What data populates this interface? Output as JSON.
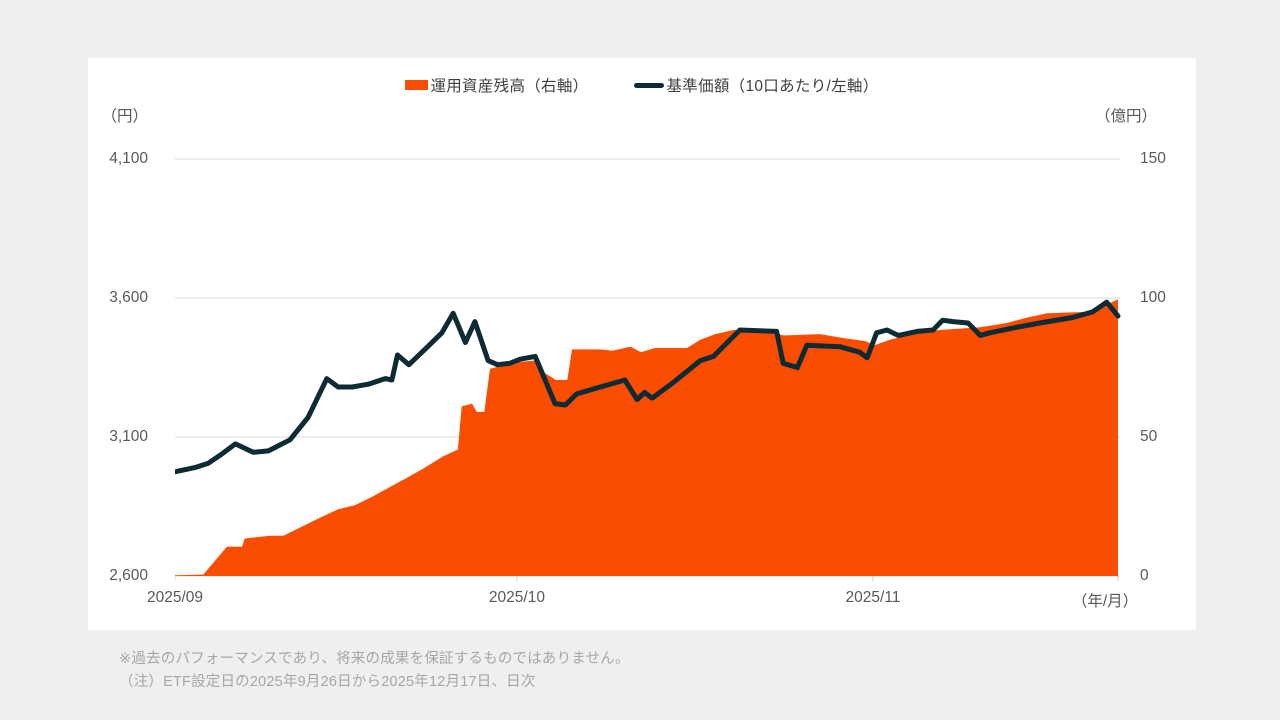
{
  "legend": {
    "items": [
      {
        "label": "運用資産残高（右軸）",
        "swatch": "area",
        "color": "#fa4d00"
      },
      {
        "label": "基準価額（10口あたり/左軸）",
        "swatch": "line",
        "color": "#0d2b35"
      }
    ]
  },
  "axes": {
    "left": {
      "unit": "（円）",
      "ticks": [
        "4,100",
        "3,600",
        "3,100",
        "2,600"
      ]
    },
    "right": {
      "unit": "（億円）",
      "ticks": [
        "150",
        "100",
        "50",
        "0"
      ]
    },
    "x": {
      "unit": "（年/月）"
    }
  },
  "notes": {
    "line1": "※過去のパフォーマンスであり、将来の成果を保証するものではありません。",
    "line2": "（注）ETF設定日の2025年9月26日から2025年12月17日、日次"
  },
  "chart_data": {
    "type": "area+line combo",
    "x_unit": "（年/月）",
    "x_ticks": [
      {
        "label": "2025/09",
        "pos": 0.0
      },
      {
        "label": "2025/10",
        "pos": 0.3626
      },
      {
        "label": "2025/11",
        "pos": 0.7402
      }
    ],
    "left_axis": {
      "label": "基準価額（円）",
      "range": [
        2600,
        4100
      ],
      "ticks": [
        4100,
        3600,
        3100,
        2600
      ]
    },
    "right_axis": {
      "label": "運用資産残高（億円）",
      "range": [
        0,
        150
      ],
      "ticks": [
        150,
        100,
        50,
        0
      ]
    },
    "grid": "horizontal only",
    "legend_position": "top center",
    "series": [
      {
        "name": "運用資産残高（右軸）",
        "type": "area",
        "axis": "right",
        "unit": "億円",
        "color": "#fa4d00",
        "points": [
          [
            0.0,
            0.3
          ],
          [
            0.03,
            0.5
          ],
          [
            0.055,
            10.5
          ],
          [
            0.071,
            10.5
          ],
          [
            0.074,
            13.5
          ],
          [
            0.101,
            14.5
          ],
          [
            0.115,
            14.5
          ],
          [
            0.133,
            17.5
          ],
          [
            0.154,
            21
          ],
          [
            0.173,
            24
          ],
          [
            0.191,
            25.5
          ],
          [
            0.209,
            28.5
          ],
          [
            0.228,
            32
          ],
          [
            0.247,
            35.5
          ],
          [
            0.265,
            39
          ],
          [
            0.284,
            43
          ],
          [
            0.3,
            45.5
          ],
          [
            0.304,
            61
          ],
          [
            0.315,
            62
          ],
          [
            0.32,
            59
          ],
          [
            0.328,
            59
          ],
          [
            0.334,
            74.5
          ],
          [
            0.345,
            75.5
          ],
          [
            0.366,
            77
          ],
          [
            0.382,
            77.5
          ],
          [
            0.39,
            73.5
          ],
          [
            0.404,
            70.5
          ],
          [
            0.416,
            70.5
          ],
          [
            0.421,
            81.5
          ],
          [
            0.451,
            81.5
          ],
          [
            0.464,
            81
          ],
          [
            0.483,
            82.5
          ],
          [
            0.494,
            80.5
          ],
          [
            0.509,
            82
          ],
          [
            0.543,
            82
          ],
          [
            0.557,
            85
          ],
          [
            0.573,
            87
          ],
          [
            0.592,
            88.5
          ],
          [
            0.631,
            88
          ],
          [
            0.645,
            86.5
          ],
          [
            0.684,
            87
          ],
          [
            0.71,
            85.5
          ],
          [
            0.732,
            84.5
          ],
          [
            0.742,
            83
          ],
          [
            0.758,
            85
          ],
          [
            0.776,
            86.5
          ],
          [
            0.811,
            88.5
          ],
          [
            0.854,
            89.5
          ],
          [
            0.882,
            91
          ],
          [
            0.904,
            93
          ],
          [
            0.925,
            94.5
          ],
          [
            0.967,
            95
          ],
          [
            0.984,
            97
          ],
          [
            1.0,
            99.5
          ]
        ]
      },
      {
        "name": "基準価額（10口あたり/左軸）",
        "type": "line",
        "axis": "left",
        "unit": "円",
        "color": "#0d2b35",
        "points": [
          [
            0.0,
            2975
          ],
          [
            0.021,
            2990
          ],
          [
            0.035,
            3005
          ],
          [
            0.048,
            3035
          ],
          [
            0.064,
            3075
          ],
          [
            0.083,
            3045
          ],
          [
            0.099,
            3050
          ],
          [
            0.122,
            3090
          ],
          [
            0.141,
            3170
          ],
          [
            0.146,
            3205
          ],
          [
            0.161,
            3310
          ],
          [
            0.173,
            3280
          ],
          [
            0.188,
            3280
          ],
          [
            0.205,
            3290
          ],
          [
            0.223,
            3310
          ],
          [
            0.23,
            3305
          ],
          [
            0.236,
            3395
          ],
          [
            0.248,
            3360
          ],
          [
            0.268,
            3425
          ],
          [
            0.283,
            3475
          ],
          [
            0.295,
            3545
          ],
          [
            0.308,
            3440
          ],
          [
            0.318,
            3515
          ],
          [
            0.332,
            3375
          ],
          [
            0.342,
            3360
          ],
          [
            0.355,
            3365
          ],
          [
            0.366,
            3380
          ],
          [
            0.382,
            3390
          ],
          [
            0.403,
            3220
          ],
          [
            0.414,
            3215
          ],
          [
            0.426,
            3255
          ],
          [
            0.451,
            3280
          ],
          [
            0.477,
            3305
          ],
          [
            0.49,
            3235
          ],
          [
            0.498,
            3260
          ],
          [
            0.506,
            3240
          ],
          [
            0.528,
            3295
          ],
          [
            0.557,
            3375
          ],
          [
            0.571,
            3390
          ],
          [
            0.599,
            3485
          ],
          [
            0.638,
            3480
          ],
          [
            0.645,
            3365
          ],
          [
            0.66,
            3350
          ],
          [
            0.67,
            3430
          ],
          [
            0.705,
            3425
          ],
          [
            0.726,
            3405
          ],
          [
            0.734,
            3385
          ],
          [
            0.744,
            3475
          ],
          [
            0.755,
            3485
          ],
          [
            0.767,
            3465
          ],
          [
            0.787,
            3480
          ],
          [
            0.804,
            3485
          ],
          [
            0.814,
            3520
          ],
          [
            0.825,
            3515
          ],
          [
            0.841,
            3510
          ],
          [
            0.854,
            3465
          ],
          [
            0.864,
            3475
          ],
          [
            0.893,
            3495
          ],
          [
            0.917,
            3510
          ],
          [
            0.952,
            3530
          ],
          [
            0.973,
            3550
          ],
          [
            0.988,
            3585
          ],
          [
            1.0,
            3535
          ]
        ]
      }
    ]
  }
}
